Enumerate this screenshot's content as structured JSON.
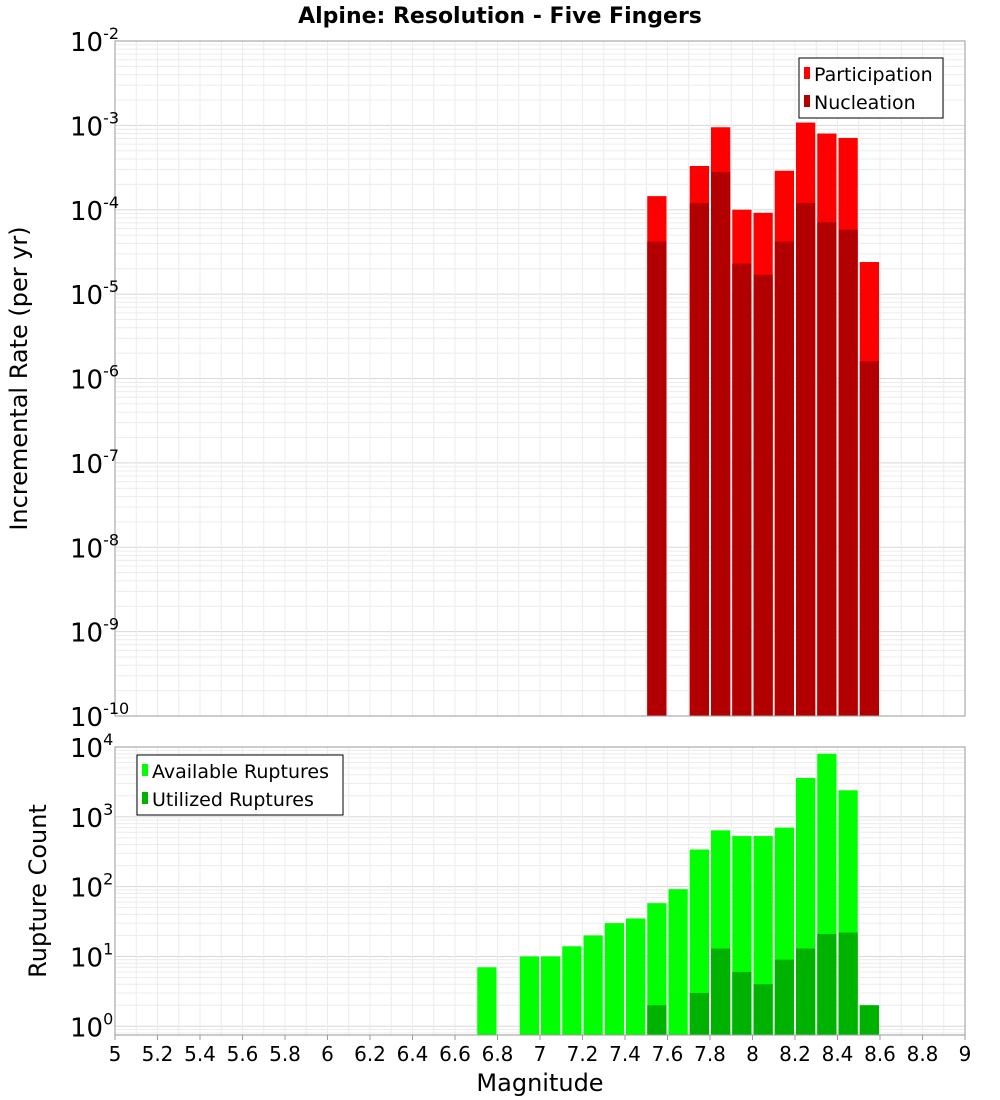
{
  "title": "Alpine: Resolution - Five Fingers",
  "chart_data": [
    {
      "type": "bar",
      "panel": "top",
      "y_scale": "log",
      "ylabel": "Incremental Rate (per yr)",
      "ylim": [
        1e-10,
        0.01
      ],
      "y_ticks": [
        {
          "base": "10",
          "exp": "-2",
          "value": 0.01
        },
        {
          "base": "10",
          "exp": "-3",
          "value": 0.001
        },
        {
          "base": "10",
          "exp": "-4",
          "value": 0.0001
        },
        {
          "base": "10",
          "exp": "-5",
          "value": 1e-05
        },
        {
          "base": "10",
          "exp": "-6",
          "value": 1e-06
        },
        {
          "base": "10",
          "exp": "-7",
          "value": 1e-07
        },
        {
          "base": "10",
          "exp": "-8",
          "value": 1e-08
        },
        {
          "base": "10",
          "exp": "-9",
          "value": 1e-09
        },
        {
          "base": "10",
          "exp": "-10",
          "value": 1e-10
        }
      ],
      "x": [
        7.55,
        7.75,
        7.85,
        7.95,
        8.05,
        8.15,
        8.25,
        8.35,
        8.45,
        8.55
      ],
      "series": [
        {
          "name": "Participation",
          "color": "#ff0000",
          "values": [
            0.000145,
            0.00033,
            0.00095,
            0.0001,
            9.2e-05,
            0.00029,
            0.00108,
            0.0008,
            0.00071,
            2.4e-05
          ]
        },
        {
          "name": "Nucleation",
          "color": "#b20000",
          "values": [
            4.2e-05,
            0.00012,
            0.00028,
            2.3e-05,
            1.7e-05,
            4.2e-05,
            0.00012,
            7.1e-05,
            5.8e-05,
            1.6e-06
          ]
        }
      ],
      "legend_position": "top-right",
      "grid": true
    },
    {
      "type": "bar",
      "panel": "bottom",
      "y_scale": "log",
      "ylabel": "Rupture Count",
      "ylim": [
        0.75,
        10000
      ],
      "y_ticks": [
        {
          "base": "10",
          "exp": "4",
          "value": 10000
        },
        {
          "base": "10",
          "exp": "3",
          "value": 1000
        },
        {
          "base": "10",
          "exp": "2",
          "value": 100
        },
        {
          "base": "10",
          "exp": "1",
          "value": 10
        },
        {
          "base": "10",
          "exp": "0",
          "value": 1
        }
      ],
      "xlabel": "Magnitude",
      "xlim": [
        5,
        9
      ],
      "x_ticks": [
        "5",
        "5.2",
        "5.4",
        "5.6",
        "5.8",
        "6",
        "6.2",
        "6.4",
        "6.6",
        "6.8",
        "7",
        "7.2",
        "7.4",
        "7.6",
        "7.8",
        "8",
        "8.2",
        "8.4",
        "8.6",
        "8.8",
        "9"
      ],
      "series": [
        {
          "name": "Available Ruptures",
          "color": "#00ff00",
          "x": [
            6.75,
            6.95,
            7.05,
            7.15,
            7.25,
            7.35,
            7.45,
            7.55,
            7.65,
            7.75,
            7.85,
            7.95,
            8.05,
            8.15,
            8.25,
            8.35,
            8.45,
            8.55
          ],
          "values": [
            7,
            10,
            10,
            14,
            20,
            30,
            35,
            58,
            92,
            340,
            640,
            530,
            530,
            700,
            3600,
            8000,
            2400,
            2
          ]
        },
        {
          "name": "Utilized Ruptures",
          "color": "#00b200",
          "x": [
            7.55,
            7.75,
            7.85,
            7.95,
            8.05,
            8.15,
            8.25,
            8.35,
            8.45,
            8.55
          ],
          "values": [
            2,
            3,
            13,
            6,
            4,
            9,
            13,
            21,
            22,
            2
          ]
        }
      ],
      "legend_position": "top-left",
      "grid": true
    }
  ]
}
